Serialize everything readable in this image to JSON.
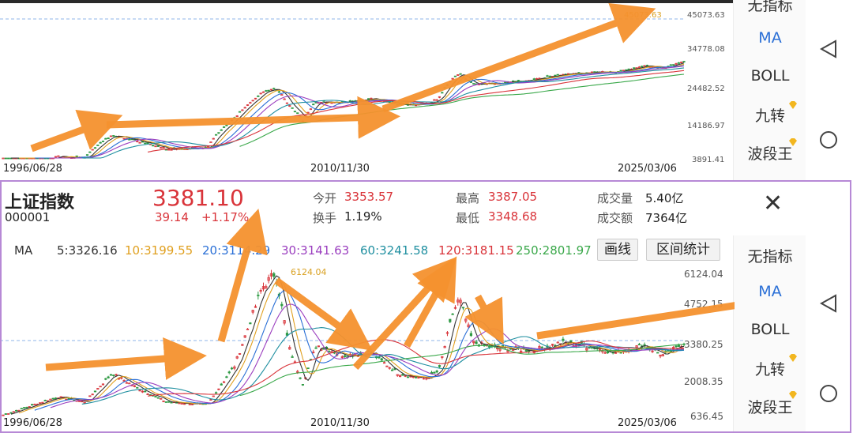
{
  "top_chart": {
    "y_ticks": [
      "45073.63",
      "34778.08",
      "24482.52",
      "14186.97",
      "3891.41"
    ],
    "high_marker": "45073.63",
    "x_dates": [
      "1996/06/28",
      "2010/11/30",
      "2025/03/06"
    ]
  },
  "info": {
    "name": "上证指数",
    "code": "000001",
    "price": "3381.10",
    "change": "39.14",
    "change_pct": "+1.17%",
    "open_label": "今开",
    "open": "3353.57",
    "turnover_label": "换手",
    "turnover": "1.19%",
    "high_label": "最高",
    "high": "3387.05",
    "low_label": "最低",
    "low": "3348.68",
    "volume_label": "成交量",
    "volume": "5.40亿",
    "amount_label": "成交额",
    "amount": "7364亿",
    "close_glyph": "✕"
  },
  "ma": {
    "label": "MA",
    "items": [
      {
        "text": "5:3326.16",
        "color": "#333333"
      },
      {
        "text": "10:3199.55",
        "color": "#e0a020"
      },
      {
        "text": "20:3114.29",
        "color": "#2a6fd6"
      },
      {
        "text": "30:3141.63",
        "color": "#9b3fbf"
      },
      {
        "text": "60:3241.58",
        "color": "#1f8fa0"
      },
      {
        "text": "120:3181.15",
        "color": "#d9343a"
      },
      {
        "text": "250:2801.97",
        "color": "#3aa84a"
      }
    ],
    "draw_button": "画线",
    "range_button": "区间统计"
  },
  "bottom_chart": {
    "y_ticks": [
      "6124.04",
      "4752.15",
      "3380.25",
      "2008.35",
      "636.45"
    ],
    "high_marker": "6124.04",
    "x_dates": [
      "1996/06/28",
      "2010/11/30",
      "2025/03/06"
    ]
  },
  "side_menu_top": {
    "items": [
      "无指标",
      "MA",
      "BOLL",
      "九转",
      "波段王"
    ]
  },
  "side_menu_bottom": {
    "items": [
      "无指标",
      "MA",
      "BOLL",
      "九转",
      "波段王"
    ]
  },
  "colors": {
    "accent": "#2a6fd6",
    "up": "#d9343a",
    "down": "#3aa84a",
    "arrow": "#f5922f",
    "frame": "#b789d6"
  }
}
